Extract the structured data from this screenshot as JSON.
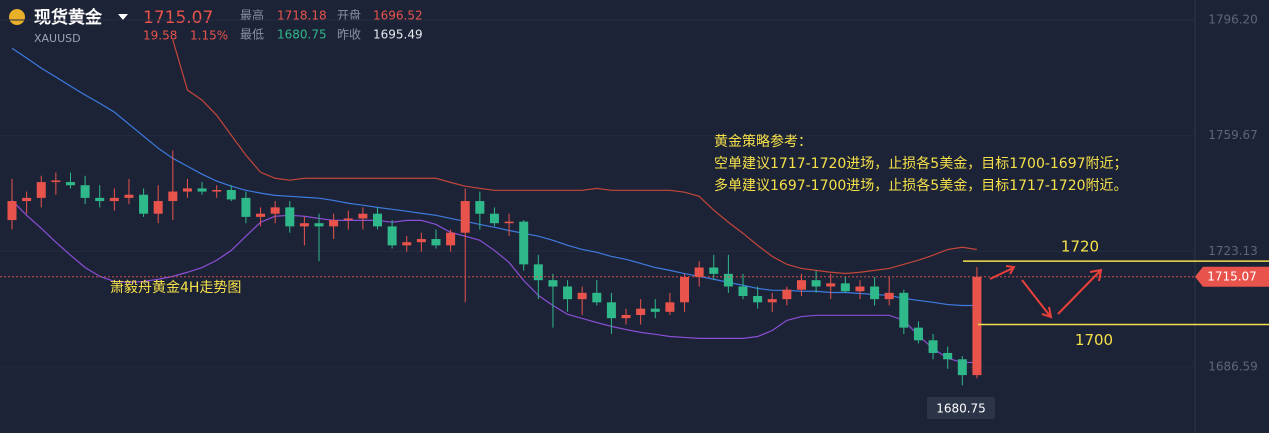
{
  "header": {
    "name": "现货黄金",
    "symbol": "XAUUSD",
    "price": 1715.07,
    "change": 19.58,
    "change_pct": "1.15%",
    "high_label": "最高",
    "high": 1718.18,
    "open_label": "开盘",
    "open": 1696.52,
    "low_label": "最低",
    "low": 1680.75,
    "prev_label": "昨收",
    "prev": 1695.49
  },
  "chart_data": {
    "type": "candlestick",
    "ylim": [
      1665.71,
      1802.53
    ],
    "yticks": [
      {
        "value": 1796.2,
        "label": "1796.20"
      },
      1759.67,
      1723.13,
      1686.59
    ],
    "up_color": "#e8534c",
    "down_color": "#2fb88a",
    "open": [
      1733,
      1739,
      1740,
      1745,
      1745,
      1744,
      1740,
      1739,
      1740,
      1741,
      1735,
      1739,
      1742,
      1743,
      1742,
      1742.5,
      1740,
      1734,
      1735,
      1737,
      1731,
      1732,
      1731,
      1733,
      1733.5,
      1735,
      1731,
      1725,
      1726,
      1727,
      1725,
      1729,
      1739,
      1735,
      1732,
      1732.5,
      1719,
      1714,
      1712,
      1708,
      1710,
      1707,
      1702,
      1703,
      1705,
      1704,
      1707,
      1715,
      1718,
      1716,
      1712,
      1709,
      1707,
      1708,
      1711,
      1714,
      1712,
      1713,
      1710.5,
      1712,
      1708,
      1710,
      1699,
      1695,
      1691,
      1689,
      1684
    ],
    "high": [
      1746,
      1742,
      1747,
      1748,
      1748,
      1747,
      1744,
      1743,
      1746,
      1743,
      1744,
      1755,
      1746,
      1745,
      1744,
      1744,
      1742,
      1737,
      1739,
      1739,
      1734,
      1735,
      1735,
      1736,
      1737,
      1737,
      1733,
      1728,
      1729,
      1730,
      1730,
      1743,
      1742,
      1737,
      1735,
      1733,
      1722,
      1716,
      1714,
      1712,
      1714,
      1710,
      1705,
      1708,
      1708,
      1710,
      1716,
      1720,
      1722,
      1722,
      1716,
      1712,
      1710,
      1712,
      1716,
      1717,
      1716,
      1715,
      1714,
      1715,
      1715,
      1711,
      1701,
      1697,
      1693,
      1690,
      1718.18
    ],
    "low": [
      1730,
      1735,
      1737,
      1741,
      1743,
      1738,
      1737,
      1736,
      1738,
      1734,
      1732,
      1733,
      1740,
      1741,
      1740,
      1739,
      1732,
      1731,
      1732,
      1729,
      1725,
      1720,
      1727,
      1730,
      1730,
      1730,
      1724,
      1723,
      1723,
      1724,
      1723,
      1707,
      1730,
      1731,
      1728,
      1717,
      1708,
      1699,
      1704,
      1703,
      1706,
      1697,
      1700,
      1700,
      1702,
      1703,
      1704,
      1712,
      1714,
      1710,
      1708,
      1705,
      1704,
      1706,
      1709,
      1710,
      1708,
      1710,
      1708,
      1706,
      1706,
      1697,
      1694,
      1689,
      1686,
      1680.75,
      1683
    ],
    "close": [
      1739,
      1740,
      1745,
      1745.5,
      1744,
      1740,
      1739,
      1740,
      1741,
      1735,
      1739,
      1742,
      1743,
      1742,
      1742.5,
      1739.5,
      1734,
      1735,
      1737,
      1731,
      1732,
      1731,
      1733,
      1733.5,
      1735,
      1731,
      1725,
      1726,
      1727,
      1725,
      1729,
      1739,
      1735,
      1732,
      1732.5,
      1719,
      1714,
      1712,
      1708,
      1710,
      1707,
      1702,
      1703,
      1705,
      1704,
      1707,
      1715,
      1718,
      1716,
      1712,
      1709,
      1707,
      1708,
      1711,
      1714,
      1712,
      1713,
      1710.5,
      1712,
      1708,
      1710,
      1699,
      1695,
      1691,
      1689,
      1684,
      1715.07
    ],
    "lines": [
      {
        "color": "#3d7be0",
        "values": [
          1787.3,
          1784.2,
          1781.0,
          1778.2,
          1775.3,
          1772.5,
          1769.9,
          1767.1,
          1763.3,
          1759.5,
          1755.7,
          1752.5,
          1750.0,
          1747.5,
          1745.3,
          1743.7,
          1742.4,
          1741.5,
          1740.8,
          1740.5,
          1740.2,
          1739.9,
          1739.2,
          1738.3,
          1737.7,
          1737.0,
          1736.4,
          1735.8,
          1735.1,
          1734.5,
          1733.5,
          1732.6,
          1731.6,
          1730.7,
          1729.7,
          1728.8,
          1727.9,
          1726.6,
          1725.0,
          1723.7,
          1722.8,
          1721.5,
          1720.6,
          1719.3,
          1718.0,
          1717.1,
          1716.1,
          1715.2,
          1714.3,
          1713.3,
          1712.4,
          1711.4,
          1710.8,
          1710.8,
          1710.5,
          1710.5,
          1710.1,
          1710.1,
          1709.8,
          1709.5,
          1709.2,
          1708.2,
          1707.6,
          1707.0,
          1706.3,
          1706.0,
          1706.0
        ]
      },
      {
        "color": "#c2463a",
        "values": [
          null,
          null,
          null,
          null,
          null,
          null,
          null,
          null,
          null,
          null,
          null,
          1789.9,
          1774.1,
          1770.9,
          1766.1,
          1759.8,
          1753.5,
          1748.1,
          1746.2,
          1745.6,
          1746.2,
          1746.2,
          1746.2,
          1746.2,
          1746.2,
          1746.2,
          1746.2,
          1746.2,
          1746.2,
          1746.2,
          1744.9,
          1743.7,
          1743.0,
          1742.4,
          1742.4,
          1742.4,
          1742.4,
          1742.4,
          1742.4,
          1742.4,
          1743.0,
          1742.4,
          1742.4,
          1742.4,
          1742.4,
          1742.4,
          1741.8,
          1740.5,
          1736.1,
          1732.3,
          1728.8,
          1725.0,
          1721.5,
          1719.0,
          1717.7,
          1717.1,
          1716.5,
          1716.1,
          1716.5,
          1717.1,
          1717.7,
          1719.0,
          1720.3,
          1721.9,
          1723.7,
          1724.4,
          1723.7
        ]
      },
      {
        "color": "#8a4fd6",
        "values": [
          1739.2,
          1734.5,
          1730.4,
          1726.0,
          1721.9,
          1718.0,
          1715.2,
          1713.6,
          1713.3,
          1713.6,
          1714.3,
          1715.2,
          1716.5,
          1718.0,
          1720.3,
          1723.4,
          1727.9,
          1732.3,
          1734.2,
          1734.5,
          1734.2,
          1733.5,
          1732.9,
          1732.9,
          1732.9,
          1732.9,
          1732.3,
          1732.9,
          1732.9,
          1731.6,
          1729.1,
          1727.9,
          1726.6,
          1723.4,
          1719.6,
          1713.9,
          1709.2,
          1706.0,
          1703.2,
          1701.9,
          1700.6,
          1699.4,
          1698.4,
          1697.5,
          1696.9,
          1696.2,
          1695.9,
          1695.6,
          1695.6,
          1695.6,
          1695.6,
          1696.2,
          1698.1,
          1701.3,
          1702.5,
          1702.9,
          1702.9,
          1702.9,
          1702.9,
          1702.9,
          1702.9,
          1701.3,
          1696.5,
          1692.4,
          1689.3,
          1688.0,
          1688.0
        ]
      }
    ],
    "last_price": 1715.07,
    "low_marker": 1680.75,
    "levels": [
      1720,
      1700
    ],
    "strategy": [
      "黄金策略参考：",
      "空单建议1717-1720进场，止损各5美金，目标1700-1697附近；",
      "多单建议1697-1700进场，止损各5美金，目标1717-1720附近。"
    ],
    "caption": "萧毅舟黄金4H走势图"
  }
}
